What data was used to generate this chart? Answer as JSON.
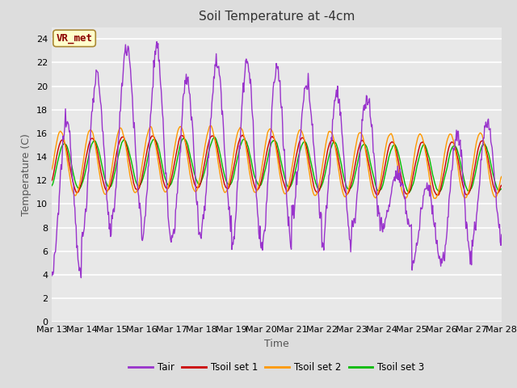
{
  "title": "Soil Temperature at -4cm",
  "xlabel": "Time",
  "ylabel": "Temperature (C)",
  "ylim": [
    0,
    25
  ],
  "n_days": 15,
  "x_tick_labels": [
    "Mar 13",
    "Mar 14",
    "Mar 15",
    "Mar 16",
    "Mar 17",
    "Mar 18",
    "Mar 19",
    "Mar 20",
    "Mar 21",
    "Mar 22",
    "Mar 23",
    "Mar 24",
    "Mar 25",
    "Mar 26",
    "Mar 27",
    "Mar 28"
  ],
  "colors": {
    "Tair": "#9933CC",
    "Tsoil1": "#CC0000",
    "Tsoil2": "#FF9900",
    "Tsoil3": "#00BB00"
  },
  "legend_labels": [
    "Tair",
    "Tsoil set 1",
    "Tsoil set 2",
    "Tsoil set 3"
  ],
  "fig_bg_color": "#DDDDDD",
  "plot_bg_color": "#E8E8E8",
  "grid_color": "#FFFFFF",
  "annotation_text": "VR_met",
  "annotation_bg": "#FFFFCC",
  "annotation_border": "#996633",
  "title_fontsize": 11,
  "axis_label_fontsize": 9,
  "tick_fontsize": 8,
  "tair_envelope_max": [
    17,
    21,
    23.5,
    23,
    20.5,
    22,
    22,
    21.5,
    20,
    19.5,
    19,
    12.5,
    11.5,
    16,
    17
  ],
  "tair_envelope_min": [
    4,
    7,
    9,
    7,
    7,
    8.5,
    6.5,
    6.5,
    9,
    6.5,
    8,
    8,
    5,
    5,
    7
  ],
  "tsoil_base": 13.3,
  "tsoil1_amp": 2.3,
  "tsoil2_amp": 2.8,
  "tsoil3_amp": 2.0,
  "tsoil1_phase": 0.6,
  "tsoil2_phase": 1.0,
  "tsoil3_phase": 0.2
}
